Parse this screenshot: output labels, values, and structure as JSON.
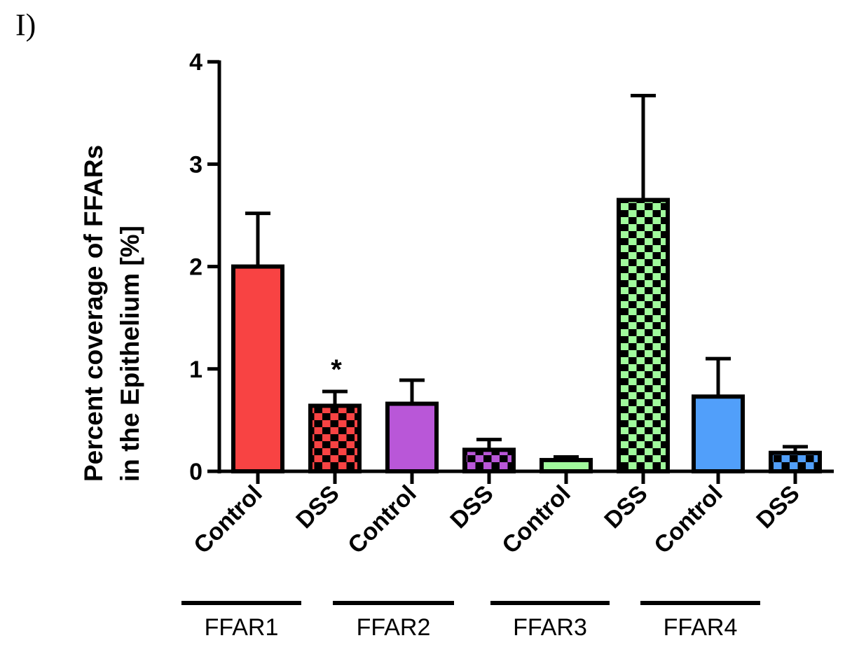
{
  "panel_label": "I)",
  "chart_data": {
    "type": "bar",
    "title": "",
    "xlabel": "",
    "ylabel": "Percent coverage of  FFARs in the Epithelium [%]",
    "ylabel_lines": [
      "Percent coverage of  FFARs",
      "in the Epithelium [%]"
    ],
    "ylim": [
      0,
      4
    ],
    "yticks": [
      0,
      1,
      2,
      3,
      4
    ],
    "grid": false,
    "legend": null,
    "categories": [
      "Control",
      "DSS",
      "Control",
      "DSS",
      "Control",
      "DSS",
      "Control",
      "DSS"
    ],
    "groups": [
      {
        "name": "FFAR1",
        "categories": [
          "Control",
          "DSS"
        ]
      },
      {
        "name": "FFAR2",
        "categories": [
          "Control",
          "DSS"
        ]
      },
      {
        "name": "FFAR3",
        "categories": [
          "Control",
          "DSS"
        ]
      },
      {
        "name": "FFAR4",
        "categories": [
          "Control",
          "DSS"
        ]
      }
    ],
    "values": [
      2.0,
      0.64,
      0.66,
      0.21,
      0.11,
      2.65,
      0.73,
      0.18
    ],
    "error_upper": [
      2.52,
      0.78,
      0.89,
      0.31,
      0.14,
      3.67,
      1.1,
      0.24
    ],
    "sem": [
      0.52,
      0.14,
      0.23,
      0.1,
      0.03,
      1.02,
      0.37,
      0.06
    ],
    "colors": [
      "#f84343",
      "#f84343",
      "#b957d8",
      "#b957d8",
      "#a0fa9c",
      "#a0fa9c",
      "#519ffa",
      "#519ffa"
    ],
    "patterns": [
      "solid",
      "checker",
      "solid",
      "checker",
      "solid",
      "checker",
      "solid",
      "checker"
    ],
    "annotations": [
      {
        "category_index": 1,
        "text": "*"
      }
    ]
  }
}
